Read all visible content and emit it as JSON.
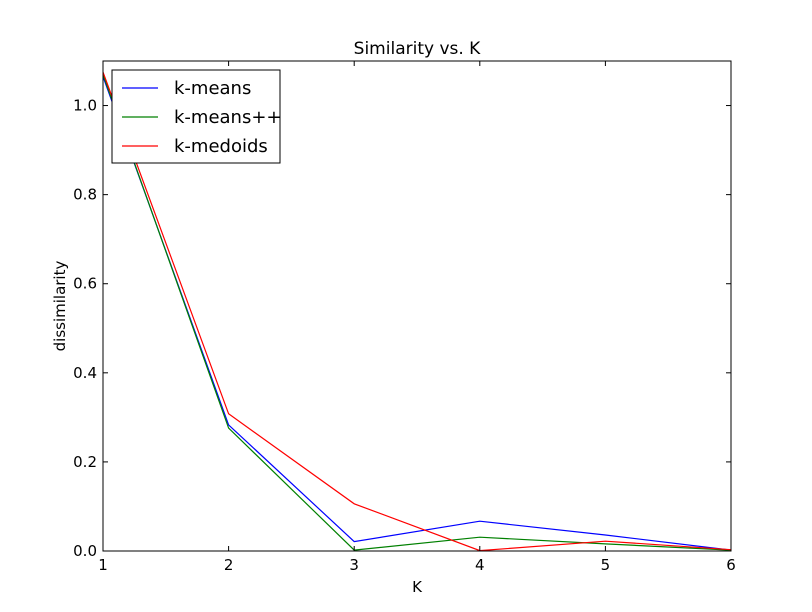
{
  "chart_data": {
    "type": "line",
    "title": "Similarity vs. K",
    "xlabel": "K",
    "ylabel": "dissimilarity",
    "xlim": [
      1,
      6
    ],
    "ylim": [
      0.0,
      1.1
    ],
    "xticks": [
      1,
      2,
      3,
      4,
      5,
      6
    ],
    "yticks": [
      0.0,
      0.2,
      0.4,
      0.6,
      0.8,
      1.0
    ],
    "x": [
      1,
      2,
      3,
      4,
      5,
      6
    ],
    "series": [
      {
        "name": "k-means",
        "color": "#0000ff",
        "values": [
          1.065,
          0.283,
          0.021,
          0.067,
          0.036,
          0.002
        ]
      },
      {
        "name": "k-means++",
        "color": "#008000",
        "values": [
          1.07,
          0.276,
          0.002,
          0.031,
          0.016,
          0.002
        ]
      },
      {
        "name": "k-medoids",
        "color": "#ff0000",
        "values": [
          1.075,
          0.308,
          0.106,
          0.001,
          0.022,
          0.003
        ]
      }
    ],
    "legend_position": "top-left",
    "grid": false
  }
}
